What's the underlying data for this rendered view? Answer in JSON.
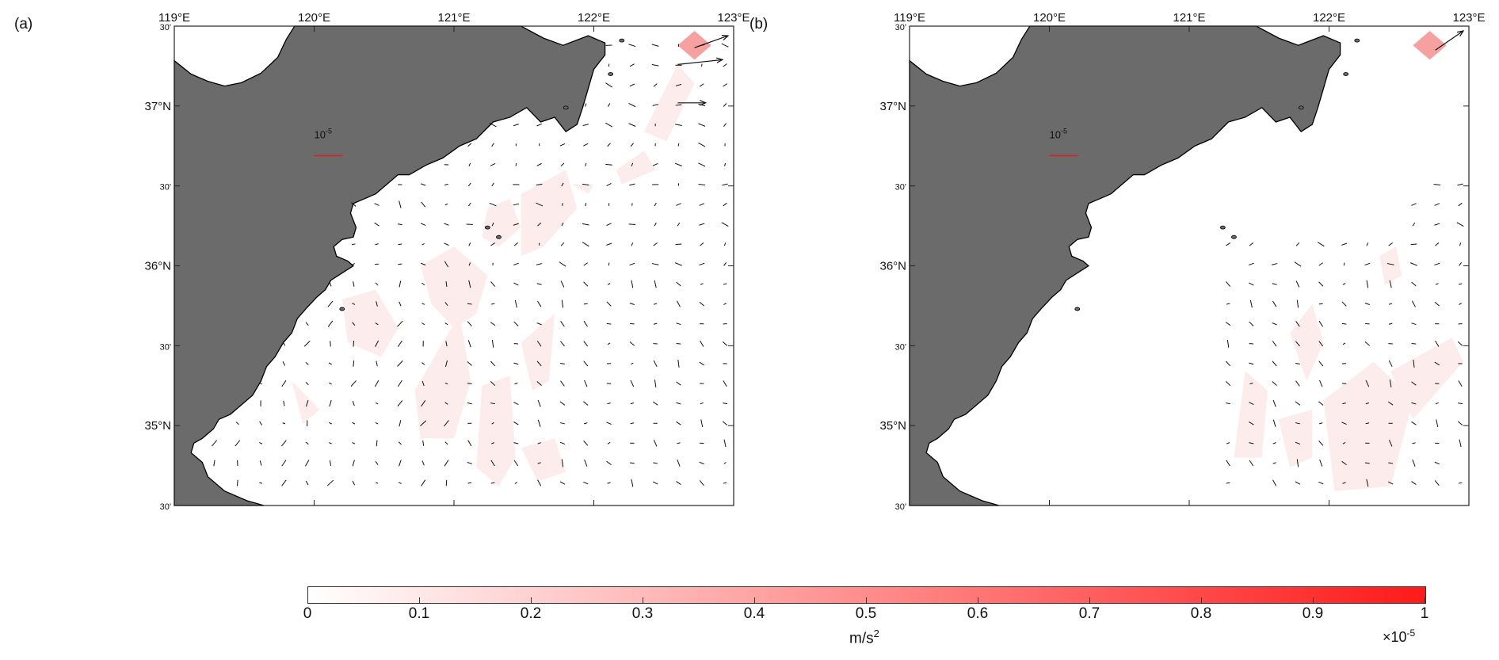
{
  "panels": [
    {
      "label": "(a)",
      "lon_labels": [
        "119°E",
        "120°E",
        "121°E",
        "122°E",
        "123°E"
      ],
      "lat_labels": [
        "30'",
        "37°N",
        "30'",
        "36°N",
        "30'",
        "35°N",
        "30'"
      ],
      "reference_vector_label": "10-5",
      "colors": {
        "land": "#6b6b6b",
        "shade": "#fdecec",
        "arrow": "#111111",
        "reference": "#e02020"
      }
    },
    {
      "label": "(b)",
      "lon_labels": [
        "119°E",
        "120°E",
        "121°E",
        "122°E",
        "123°E"
      ],
      "lat_labels": [
        "30'",
        "37°N",
        "30'",
        "36°N",
        "30'",
        "35°N",
        "30'"
      ],
      "reference_vector_label": "10-5",
      "colors": {
        "land": "#6b6b6b",
        "shade": "#fdecec",
        "arrow": "#111111",
        "reference": "#e02020"
      }
    }
  ],
  "colorbar": {
    "ticks": [
      "0",
      "0.1",
      "0.2",
      "0.3",
      "0.4",
      "0.5",
      "0.6",
      "0.7",
      "0.8",
      "0.9",
      "1"
    ],
    "units_base": "m/s",
    "units_exp": "2",
    "scale_base": "×10",
    "scale_exp": "-5",
    "color_min": "#ffffff",
    "color_max": "#ff1a1a"
  }
}
